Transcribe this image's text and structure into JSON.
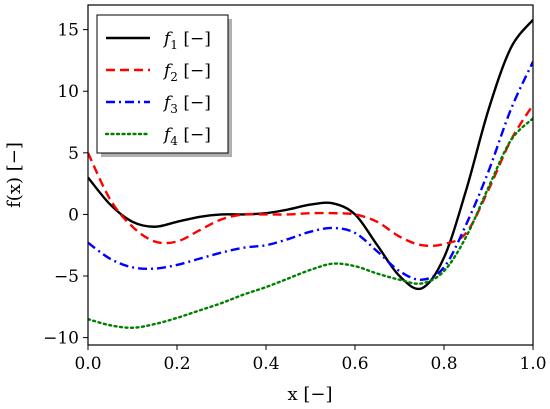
{
  "chart_data": {
    "type": "line",
    "xlabel": "x [−]",
    "ylabel": "f(x) [−]",
    "xlim": [
      0.0,
      1.0
    ],
    "ylim": [
      -10.6,
      17.0
    ],
    "xticks": [
      0.0,
      0.2,
      0.4,
      0.6,
      0.8,
      1.0
    ],
    "xtick_labels": [
      "0.0",
      "0.2",
      "0.4",
      "0.6",
      "0.8",
      "1.0"
    ],
    "yticks": [
      -10,
      -5,
      0,
      5,
      10,
      15
    ],
    "ytick_labels": [
      "−10",
      "−5",
      "0",
      "5",
      "10",
      "15"
    ],
    "grid": false,
    "legend_position": "top-left",
    "x": [
      0.0,
      0.05,
      0.1,
      0.15,
      0.2,
      0.25,
      0.3,
      0.35,
      0.4,
      0.45,
      0.5,
      0.55,
      0.6,
      0.65,
      0.7,
      0.75,
      0.8,
      0.85,
      0.9,
      0.95,
      1.0
    ],
    "series": [
      {
        "name": "f1 [−]",
        "color": "#000000",
        "dash": "solid",
        "values": [
          3.0,
          0.8,
          -0.6,
          -1.0,
          -0.6,
          -0.2,
          0.0,
          0.0,
          0.1,
          0.4,
          0.8,
          0.9,
          0.0,
          -2.5,
          -5.0,
          -6.0,
          -3.5,
          2.0,
          8.5,
          13.5,
          15.8
        ]
      },
      {
        "name": "f2 [−]",
        "color": "#ff0000",
        "dash": "dashed",
        "values": [
          5.0,
          1.2,
          -1.0,
          -2.2,
          -2.2,
          -1.3,
          -0.4,
          0.0,
          0.0,
          0.0,
          0.1,
          0.1,
          0.0,
          -0.6,
          -1.8,
          -2.5,
          -2.4,
          -1.5,
          2.0,
          6.0,
          8.9
        ]
      },
      {
        "name": "f3 [−]",
        "color": "#0000ff",
        "dash": "dashdot",
        "values": [
          -2.3,
          -3.6,
          -4.3,
          -4.4,
          -4.1,
          -3.6,
          -3.1,
          -2.7,
          -2.5,
          -2.0,
          -1.4,
          -1.1,
          -1.5,
          -3.0,
          -4.6,
          -5.3,
          -4.3,
          -0.8,
          3.5,
          8.5,
          12.4
        ]
      },
      {
        "name": "f4 [−]",
        "color": "#008000",
        "dash": "dotted",
        "values": [
          -8.5,
          -9.0,
          -9.2,
          -8.9,
          -8.4,
          -7.8,
          -7.2,
          -6.5,
          -5.9,
          -5.2,
          -4.5,
          -4.0,
          -4.2,
          -4.8,
          -5.3,
          -5.6,
          -4.6,
          -1.8,
          2.2,
          6.0,
          7.8
        ]
      }
    ],
    "legend_labels": [
      {
        "main": "f",
        "sub": "1",
        "unit": " [−]"
      },
      {
        "main": "f",
        "sub": "2",
        "unit": " [−]"
      },
      {
        "main": "f",
        "sub": "3",
        "unit": " [−]"
      },
      {
        "main": "f",
        "sub": "4",
        "unit": " [−]"
      }
    ]
  }
}
